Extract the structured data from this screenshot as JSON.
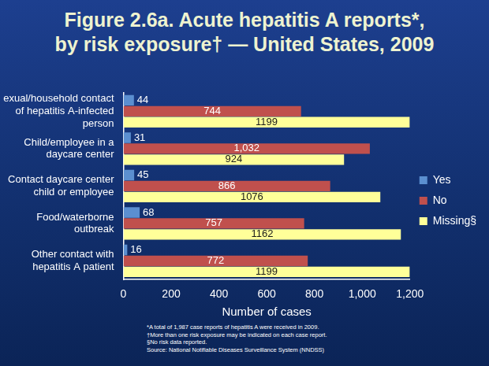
{
  "chart_data": {
    "type": "bar",
    "orientation": "horizontal",
    "title": [
      "Figure 2.6a.  Acute hepatitis A reports*,",
      "by risk exposure† — United States, 2009"
    ],
    "categories": [
      [
        "Sexual/household contact",
        "of hepatitis A-infected",
        "person"
      ],
      [
        "Child/employee in a",
        "daycare center"
      ],
      [
        "Contact daycare center",
        "child or employee"
      ],
      [
        "Food/waterborne",
        "outbreak"
      ],
      [
        "Other contact with",
        "hepatitis A patient"
      ]
    ],
    "series": [
      {
        "name": "Yes",
        "color": "#5b8fd0",
        "values": [
          44,
          31,
          45,
          68,
          16
        ]
      },
      {
        "name": "No",
        "color": "#c0504d",
        "values": [
          744,
          1032,
          866,
          757,
          772
        ],
        "value_labels": [
          "744",
          "1,032",
          "866",
          "757",
          "772"
        ]
      },
      {
        "name": "Missing§",
        "color": "#ffff99",
        "values": [
          1199,
          924,
          1076,
          1162,
          1199
        ]
      }
    ],
    "x_label": "Number of cases",
    "xlim": [
      0,
      1200
    ],
    "xticks": [
      0,
      200,
      400,
      600,
      800,
      1000,
      1200
    ],
    "grid": false,
    "legend": "right",
    "data_labels": true,
    "notes": [
      "*A total of 1,987 case reports of hepatitis A were received in 2009.",
      "†More than one risk exposure may be indicated on each case report.",
      "§No risk data reported.",
      "Source: National Notifiable Diseases Surveillance System (NNDSS)"
    ]
  }
}
